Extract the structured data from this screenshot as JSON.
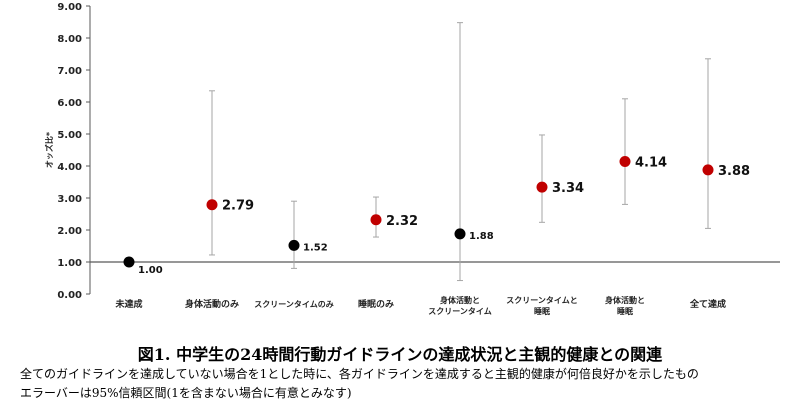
{
  "chart_data": {
    "type": "scatter",
    "title": "",
    "ylabel": "オッズ比*",
    "ylim": [
      0,
      9
    ],
    "yticks": [
      "0.00",
      "1.00",
      "2.00",
      "3.00",
      "4.00",
      "5.00",
      "6.00",
      "7.00",
      "8.00",
      "9.00"
    ],
    "reference_line": 1.0,
    "categories": [
      [
        "未達成"
      ],
      [
        "身体活動のみ"
      ],
      [
        "スクリーンタイムのみ"
      ],
      [
        "睡眠のみ"
      ],
      [
        "身体活動と",
        "スクリーンタイム"
      ],
      [
        "スクリーンタイムと",
        "睡眠"
      ],
      [
        "身体活動と",
        "睡眠"
      ],
      [
        "全て達成"
      ]
    ],
    "values": [
      1.0,
      2.79,
      1.52,
      2.32,
      1.88,
      3.34,
      4.14,
      3.88
    ],
    "value_labels": [
      "1.00",
      "2.79",
      "1.52",
      "2.32",
      "1.88",
      "3.34",
      "4.14",
      "3.88"
    ],
    "ci_low": [
      1.0,
      1.22,
      0.8,
      1.78,
      0.42,
      2.24,
      2.8,
      2.05
    ],
    "ci_high": [
      1.0,
      6.35,
      2.9,
      3.03,
      8.48,
      4.97,
      6.1,
      7.35
    ],
    "significant": [
      false,
      true,
      false,
      true,
      false,
      true,
      true,
      true
    ],
    "colors": {
      "significant": "#c00000",
      "not_significant": "#000000",
      "ci": "#a6a6a6",
      "axis": "#595959"
    },
    "grid": false,
    "legend": "none"
  },
  "caption": {
    "title": "図1. 中学生の24時間行動ガイドラインの達成状況と主観的健康との関連",
    "note1": "全てのガイドラインを達成していない場合を1とした時に、各ガイドラインを達成すると主観的健康が何倍良好かを示したもの",
    "note2": "エラーバーは95%信頼区間(1を含まない場合に有意とみなす)"
  }
}
